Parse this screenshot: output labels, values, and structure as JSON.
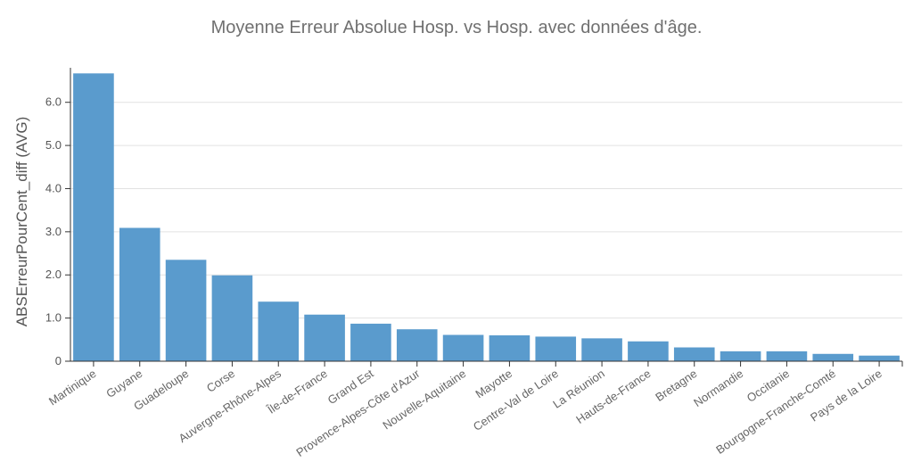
{
  "chart_data": {
    "type": "bar",
    "title": "Moyenne Erreur Absolue Hosp. vs Hosp. avec données d'âge.",
    "xlabel": "",
    "ylabel": "ABSErreurPourCent_diff (AVG)",
    "ylim": [
      0,
      6.8
    ],
    "yticks": [
      "0",
      "1.0",
      "2.0",
      "3.0",
      "4.0",
      "5.0",
      "6.0"
    ],
    "grid": true,
    "color": "#5a9bcd",
    "categories": [
      "Martinique",
      "Guyane",
      "Guadeloupe",
      "Corse",
      "Auvergne-Rhône-Alpes",
      "Île-de-France",
      "Grand Est",
      "Provence-Alpes-Côte d'Azur",
      "Nouvelle-Aquitaine",
      "Mayotte",
      "Centre-Val de Loire",
      "La Réunion",
      "Hauts-de-France",
      "Bretagne",
      "Normandie",
      "Occitanie",
      "Bourgogne-Franche-Comté",
      "Pays de la Loire"
    ],
    "values": [
      6.67,
      3.09,
      2.35,
      1.99,
      1.38,
      1.08,
      0.87,
      0.74,
      0.61,
      0.6,
      0.57,
      0.53,
      0.46,
      0.32,
      0.23,
      0.23,
      0.17,
      0.13
    ]
  }
}
